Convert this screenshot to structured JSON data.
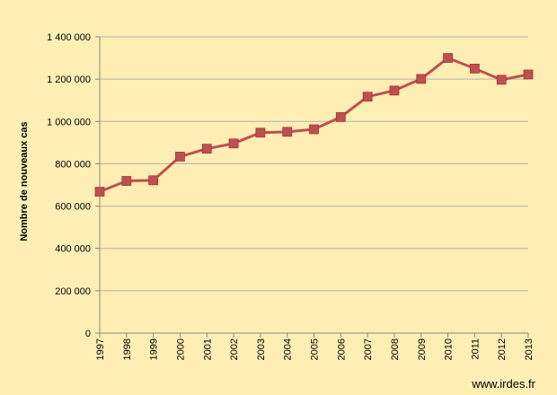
{
  "chart_data": {
    "type": "line",
    "title": "",
    "xlabel": "",
    "ylabel": "Nombre de nouveaux cas",
    "ylim": [
      0,
      1400000
    ],
    "yticks": [
      0,
      200000,
      400000,
      600000,
      800000,
      1000000,
      1200000,
      1400000
    ],
    "ytick_labels": [
      "0",
      "200 000",
      "400 000",
      "600 000",
      "800 000",
      "1 000 000",
      "1 200 000",
      "1 400 000"
    ],
    "categories": [
      "1997",
      "1998",
      "1999",
      "2000",
      "2001",
      "2002",
      "2003",
      "2004",
      "2005",
      "2006",
      "2007",
      "2008",
      "2009",
      "2010",
      "2011",
      "2012",
      "2013"
    ],
    "series": [
      {
        "values": [
          668000,
          719000,
          722000,
          834000,
          871000,
          896000,
          947000,
          951000,
          963000,
          1021000,
          1117000,
          1146000,
          1201000,
          1300000,
          1250000,
          1197000,
          1222000
        ],
        "color": "#c0504d",
        "marker": "square"
      }
    ],
    "grid": true,
    "legend": "none"
  },
  "source_text": "www.irdes.fr",
  "colors": {
    "background": "#ffeeb3",
    "gridline": "#b0b0b0",
    "axis": "#888888",
    "series": "#c0504d"
  }
}
